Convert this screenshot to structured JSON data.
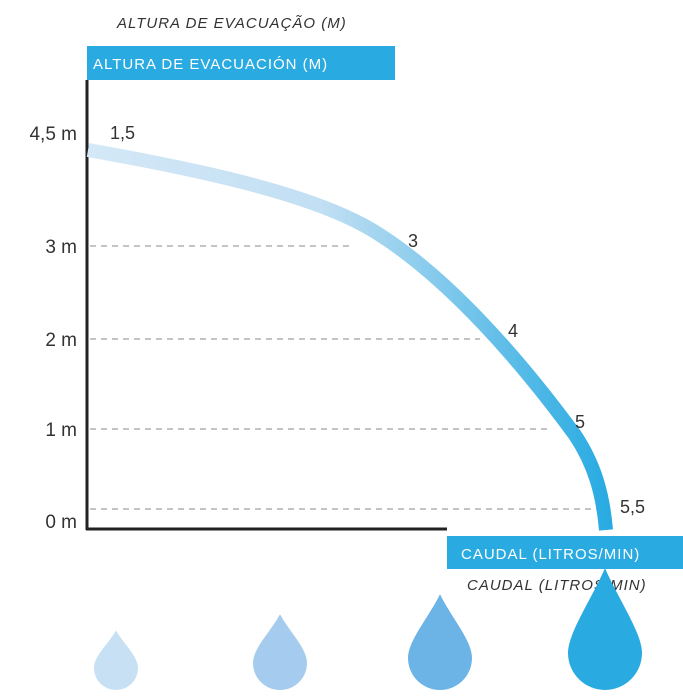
{
  "chart_data": {
    "type": "line",
    "title": "",
    "ylabel_pt": "ALTURA DE EVACUAÇÃO (M)",
    "ylabel_es": "ALTURA DE EVACUACIÓN (M)",
    "xlabel_es": "CAUDAL (LITROS/MIN)",
    "xlabel_pt": "CAUDAL (LITROS/MIN)",
    "y_ticks": [
      "0 m",
      "1 m",
      "2 m",
      "3 m",
      "4,5 m"
    ],
    "y_tick_values": [
      0,
      1,
      2,
      3,
      4.5
    ],
    "points": [
      {
        "label": "1,5",
        "x": 1.5,
        "y": 4.0
      },
      {
        "label": "3",
        "x": 3,
        "y": 3.0
      },
      {
        "label": "4",
        "x": 4,
        "y": 2.0
      },
      {
        "label": "5",
        "x": 5,
        "y": 1.0
      },
      {
        "label": "5,5",
        "x": 5.5,
        "y": 0.0
      }
    ],
    "gridlines": "dashed",
    "legend": "drops",
    "drops": 4
  },
  "colors": {
    "accent": "#29abe2",
    "curve_start": "#d4e8f7",
    "curve_end": "#29abe2",
    "drops": [
      "#c7e0f4",
      "#a5ccee",
      "#6db4e6",
      "#29abe2"
    ],
    "axis": "#222222",
    "grid": "#888888"
  }
}
